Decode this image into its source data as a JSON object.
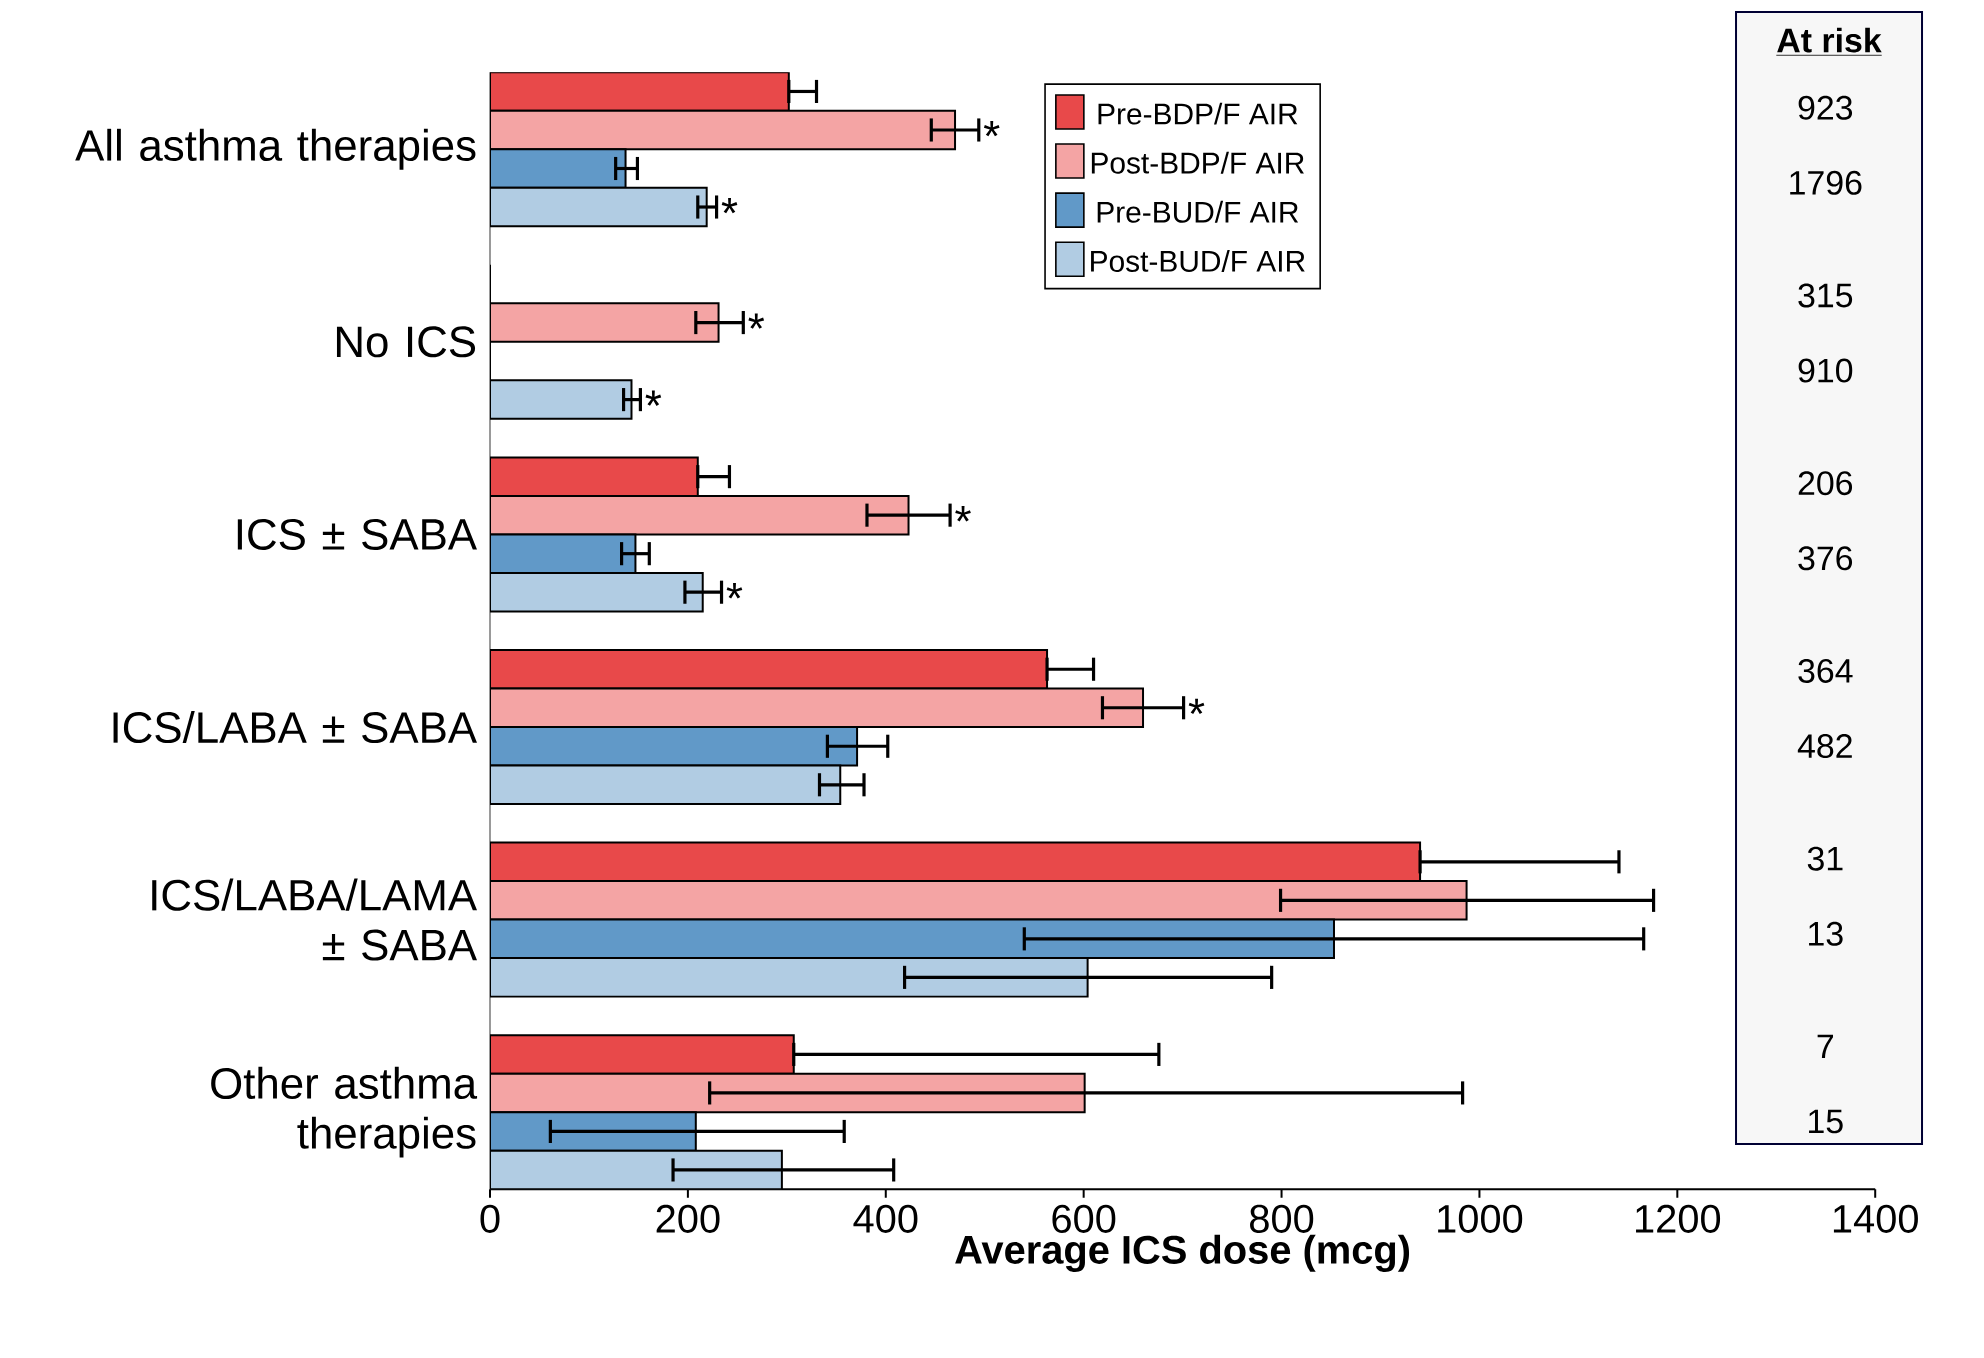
{
  "chart_data": [
    {
      "type": "bar",
      "orientation": "horizontal",
      "xlabel": "**Average ICS dose (mcg)**",
      "categories": [
        "All asthma therapies",
        "No ICS",
        "ICS ± SABA",
        "ICS/LABA ± SABA",
        "ICS/LABA/LAMA ± SABA",
        "Other asthma therapies"
      ],
      "series": [
        {
          "name": "Pre-BDP/F AIR",
          "color": "#e8494a",
          "values": [
            302,
            0,
            210,
            563,
            940,
            307
          ],
          "errors": [
            [
              302,
              330
            ],
            null,
            [
              210,
              242
            ],
            [
              563,
              610
            ],
            [
              940,
              1141
            ],
            [
              307,
              676
            ]
          ],
          "value_labels": [
            null,
            null,
            null,
            null,
            null,
            null
          ]
        },
        {
          "name": "Post-BDP/F AIR",
          "color": "#f4a4a4",
          "values": [
            470,
            231,
            423,
            660,
            987,
            601
          ],
          "errors": [
            [
              446,
              494
            ],
            [
              208,
              256
            ],
            [
              381,
              465
            ],
            [
              619,
              701
            ],
            [
              799,
              1176
            ],
            [
              222,
              983
            ]
          ],
          "value_labels": [
            "*",
            "*",
            "*",
            "*",
            null,
            null
          ]
        },
        {
          "name": "Pre-BUD/F AIR",
          "color": "#6199c8",
          "values": [
            137,
            0,
            147,
            371,
            853,
            208
          ],
          "errors": [
            [
              127,
              149
            ],
            null,
            [
              133,
              161
            ],
            [
              341,
              402
            ],
            [
              540,
              1166
            ],
            [
              61,
              358
            ]
          ],
          "value_labels": [
            null,
            null,
            null,
            null,
            null,
            null
          ]
        },
        {
          "name": "Post-BUD/F AIR",
          "color": "#b1cce3",
          "values": [
            219,
            143,
            215,
            354,
            604,
            295
          ],
          "errors": [
            [
              210,
              229
            ],
            [
              135,
              152
            ],
            [
              197,
              234
            ],
            [
              333,
              378
            ],
            [
              419,
              790
            ],
            [
              185,
              408
            ]
          ],
          "value_labels": [
            "*",
            "*",
            "*",
            null,
            null,
            null
          ]
        }
      ],
      "xlim": [
        0,
        1400
      ],
      "xticks": [
        0,
        200,
        400,
        600,
        800,
        1000,
        1200,
        1400
      ],
      "legend": "top"
    },
    {
      "type": "other",
      "title": "At risk",
      "annotations": [
        "923",
        "1796",
        "315",
        "910",
        "206",
        "376",
        "364",
        "482",
        "31",
        "13",
        "7",
        "15"
      ]
    }
  ]
}
